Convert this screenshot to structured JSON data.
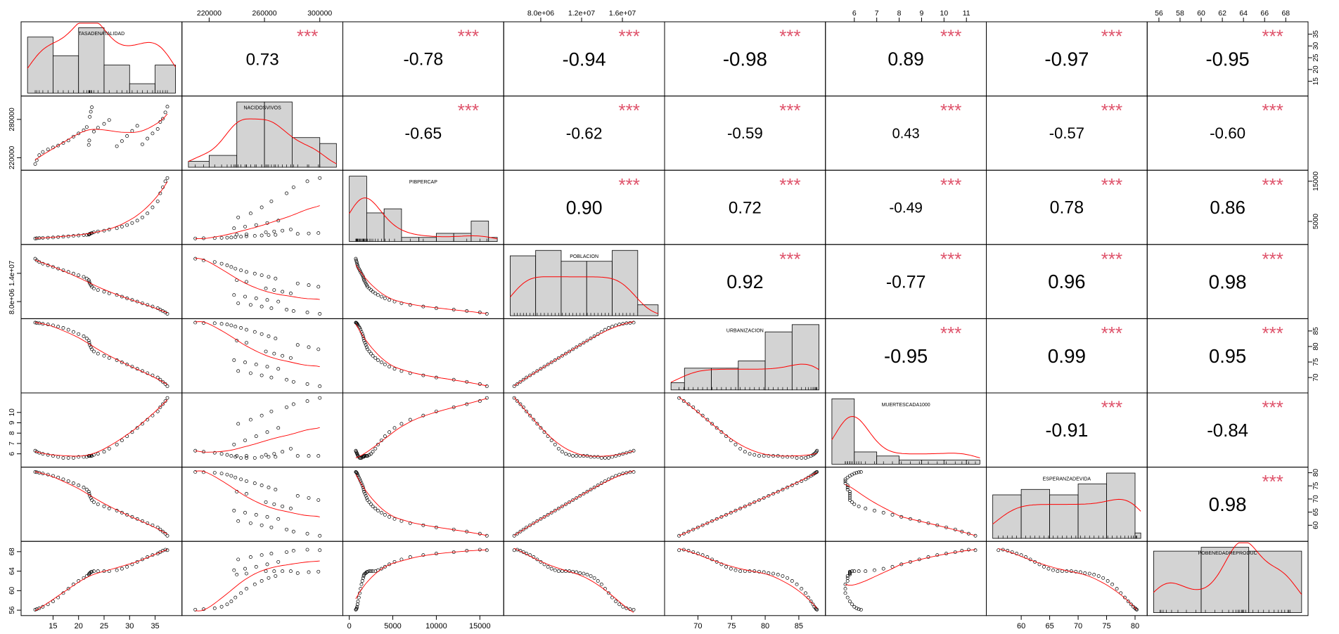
{
  "chart_data": {
    "type": "scatter",
    "variables": [
      "TASADENATALIDAD",
      "NACIDOSVIVOS",
      "PIBPERCAP",
      "POBLACION",
      "URBANIZACION",
      "MUERTESCADA1000",
      "ESPERANZADEVIDA",
      "POBENEDADREPRODUC"
    ],
    "significance_mark": "***",
    "correlations": [
      [
        null,
        0.73,
        -0.78,
        -0.94,
        -0.98,
        0.89,
        -0.97,
        -0.95
      ],
      [
        0.73,
        null,
        -0.65,
        -0.62,
        -0.59,
        0.43,
        -0.57,
        -0.6
      ],
      [
        -0.78,
        -0.65,
        null,
        0.9,
        0.72,
        -0.49,
        0.78,
        0.86
      ],
      [
        -0.94,
        -0.62,
        0.9,
        null,
        0.92,
        -0.77,
        0.96,
        0.98
      ],
      [
        -0.98,
        -0.59,
        0.72,
        0.92,
        null,
        -0.95,
        0.99,
        0.95
      ],
      [
        0.89,
        0.43,
        -0.49,
        -0.77,
        -0.95,
        null,
        -0.91,
        -0.84
      ],
      [
        -0.97,
        -0.57,
        0.78,
        0.96,
        0.99,
        -0.91,
        null,
        0.98
      ],
      [
        -0.95,
        -0.6,
        0.86,
        0.98,
        0.95,
        -0.84,
        0.98,
        null
      ]
    ],
    "correlation_labels": [
      [
        null,
        "0.73",
        "-0.78",
        "-0.94",
        "-0.98",
        "0.89",
        "-0.97",
        "-0.95"
      ],
      [
        null,
        null,
        "-0.65",
        "-0.62",
        "-0.59",
        "0.43",
        "-0.57",
        "-0.60"
      ],
      [
        null,
        null,
        null,
        "0.90",
        "0.72",
        "-0.49",
        "0.78",
        "0.86"
      ],
      [
        null,
        null,
        null,
        null,
        "0.92",
        "-0.77",
        "0.96",
        "0.98"
      ],
      [
        null,
        null,
        null,
        null,
        null,
        "-0.95",
        "0.99",
        "0.95"
      ],
      [
        null,
        null,
        null,
        null,
        null,
        null,
        "-0.91",
        "-0.84"
      ],
      [
        null,
        null,
        null,
        null,
        null,
        null,
        null,
        "0.98"
      ],
      [
        null,
        null,
        null,
        null,
        null,
        null,
        null,
        null
      ]
    ],
    "ranges": [
      [
        10,
        39
      ],
      [
        205000,
        312000
      ],
      [
        0,
        17000
      ],
      [
        5000000,
        19500000
      ],
      [
        66,
        88
      ],
      [
        5,
        11.6
      ],
      [
        55,
        81
      ],
      [
        55.5,
        69.5
      ]
    ],
    "axis_ticks": {
      "top": [
        {
          "col": 1,
          "values": [
            220000,
            260000,
            300000
          ],
          "labels": [
            "220000",
            "260000",
            "300000"
          ]
        },
        {
          "col": 3,
          "values": [
            8000000,
            12000000,
            16000000
          ],
          "labels": [
            "8.0e+06",
            "1.2e+07",
            "1.6e+07"
          ]
        },
        {
          "col": 5,
          "values": [
            6,
            7,
            8,
            9,
            10,
            11
          ],
          "labels": [
            "6",
            "7",
            "8",
            "9",
            "10",
            "11"
          ]
        },
        {
          "col": 7,
          "values": [
            56,
            58,
            60,
            62,
            64,
            66,
            68
          ],
          "labels": [
            "56",
            "58",
            "60",
            "62",
            "64",
            "66",
            "68"
          ]
        }
      ],
      "bottom": [
        {
          "col": 0,
          "values": [
            15,
            20,
            25,
            30,
            35
          ],
          "labels": [
            "15",
            "20",
            "25",
            "30",
            "35"
          ]
        },
        {
          "col": 2,
          "values": [
            0,
            5000,
            10000,
            15000
          ],
          "labels": [
            "0",
            "5000",
            "10000",
            "15000"
          ]
        },
        {
          "col": 4,
          "values": [
            70,
            75,
            80,
            85
          ],
          "labels": [
            "70",
            "75",
            "80",
            "85"
          ]
        },
        {
          "col": 6,
          "values": [
            60,
            65,
            70,
            75,
            80
          ],
          "labels": [
            "60",
            "65",
            "70",
            "75",
            "80"
          ]
        }
      ],
      "left": [
        {
          "row": 1,
          "values": [
            220000,
            280000
          ],
          "labels": [
            "220000",
            "280000"
          ]
        },
        {
          "row": 3,
          "values": [
            8000000,
            14000000
          ],
          "labels": [
            "8.0e+06",
            "1.4e+07"
          ]
        },
        {
          "row": 5,
          "values": [
            6,
            7,
            8,
            9,
            10
          ],
          "labels": [
            "6",
            "7",
            "8",
            "9",
            "10"
          ]
        },
        {
          "row": 7,
          "values": [
            56,
            60,
            64,
            68
          ],
          "labels": [
            "56",
            "60",
            "64",
            "68"
          ]
        }
      ],
      "right": [
        {
          "row": 0,
          "values": [
            15,
            20,
            25,
            30,
            35
          ],
          "labels": [
            "15",
            "20",
            "25",
            "30",
            "35"
          ]
        },
        {
          "row": 2,
          "values": [
            5000,
            15000
          ],
          "labels": [
            "5000",
            "15000"
          ]
        },
        {
          "row": 4,
          "values": [
            70,
            75,
            80,
            85
          ],
          "labels": [
            "70",
            "75",
            "80",
            "85"
          ]
        },
        {
          "row": 6,
          "values": [
            60,
            65,
            70,
            75,
            80
          ],
          "labels": [
            "60",
            "65",
            "70",
            "75",
            "80"
          ]
        }
      ]
    },
    "histograms": [
      {
        "bins": [
          10,
          15,
          20,
          25,
          30,
          35,
          39
        ],
        "counts": [
          6,
          4,
          7,
          3,
          1,
          3
        ]
      },
      {
        "bins": [
          205000,
          220000,
          240000,
          260000,
          280000,
          300000,
          312000
        ],
        "counts": [
          1,
          2,
          11,
          11,
          5,
          4
        ]
      },
      {
        "bins": [
          0,
          2000,
          4000,
          6000,
          8000,
          10000,
          12000,
          14000,
          16000,
          17000
        ],
        "counts": [
          16,
          7,
          8,
          1,
          1,
          2,
          2,
          5,
          1
        ]
      },
      {
        "bins": [
          5000000,
          7500000,
          10000000,
          12500000,
          15000000,
          17500000,
          19500000
        ],
        "counts": [
          11,
          12,
          10,
          10,
          12,
          2
        ]
      },
      {
        "bins": [
          66,
          68,
          72,
          76,
          80,
          84,
          88
        ],
        "counts": [
          1,
          3,
          3,
          4,
          8,
          9
        ]
      },
      {
        "bins": [
          5,
          6,
          7,
          8,
          9,
          10,
          11,
          11.6
        ],
        "counts": [
          16,
          3,
          2,
          1,
          1,
          1,
          1
        ]
      },
      {
        "bins": [
          55,
          60,
          65,
          70,
          75,
          80,
          81
        ],
        "counts": [
          8,
          9,
          8,
          10,
          12,
          1
        ]
      },
      {
        "bins": [
          55.5,
          60,
          64.5,
          69.5
        ],
        "counts": [
          16,
          17,
          16
        ]
      }
    ],
    "observations": [
      {
        "TASADENATALIDAD": 37.4,
        "NACIDOSVIVOS": 300000,
        "PIBPERCAP": 15800,
        "POBLACION": 5400000,
        "URBANIZACION": 67.2,
        "MUERTESCADA1000": 11.4,
        "ESPERANZADEVIDA": 56.0,
        "POBENEDADREPRODUC": 68.3
      },
      {
        "TASADENATALIDAD": 37.0,
        "NACIDOSVIVOS": 291000,
        "PIBPERCAP": 15000,
        "POBLACION": 5700000,
        "URBANIZACION": 67.9,
        "MUERTESCADA1000": 11.1,
        "ESPERANZADEVIDA": 56.8,
        "POBENEDADREPRODUC": 68.4
      },
      {
        "TASADENATALIDAD": 36.5,
        "NACIDOSVIVOS": 281000,
        "PIBPERCAP": 13500,
        "POBLACION": 6000000,
        "URBANIZACION": 68.6,
        "MUERTESCADA1000": 10.8,
        "ESPERANZADEVIDA": 57.6,
        "POBENEDADREPRODUC": 68.2
      },
      {
        "TASADENATALIDAD": 36.0,
        "NACIDOSVIVOS": 276000,
        "PIBPERCAP": 12000,
        "POBLACION": 6300000,
        "URBANIZACION": 69.3,
        "MUERTESCADA1000": 10.5,
        "ESPERANZADEVIDA": 58.4,
        "POBENEDADREPRODUC": 67.9
      },
      {
        "TASADENATALIDAD": 35.5,
        "NACIDOSVIVOS": 265000,
        "PIBPERCAP": 10000,
        "POBLACION": 6600000,
        "URBANIZACION": 70.0,
        "MUERTESCADA1000": 10.1,
        "ESPERANZADEVIDA": 59.2,
        "POBENEDADREPRODUC": 67.6
      },
      {
        "TASADENATALIDAD": 34.5,
        "NACIDOSVIVOS": 258000,
        "PIBPERCAP": 8500,
        "POBLACION": 6950000,
        "URBANIZACION": 70.7,
        "MUERTESCADA1000": 9.7,
        "ESPERANZADEVIDA": 60.0,
        "POBENEDADREPRODUC": 67.3
      },
      {
        "TASADENATALIDAD": 33.5,
        "NACIDOSVIVOS": 250000,
        "PIBPERCAP": 7000,
        "POBLACION": 7300000,
        "URBANIZACION": 71.4,
        "MUERTESCADA1000": 9.3,
        "ESPERANZADEVIDA": 60.8,
        "POBENEDADREPRODUC": 66.9
      },
      {
        "TASADENATALIDAD": 32.5,
        "NACIDOSVIVOS": 241000,
        "PIBPERCAP": 6000,
        "POBLACION": 7650000,
        "URBANIZACION": 72.1,
        "MUERTESCADA1000": 8.9,
        "ESPERANZADEVIDA": 61.6,
        "POBENEDADREPRODUC": 66.4
      },
      {
        "TASADENATALIDAD": 31.5,
        "NACIDOSVIVOS": 270000,
        "PIBPERCAP": 5200,
        "POBLACION": 8000000,
        "URBANIZACION": 72.8,
        "MUERTESCADA1000": 8.5,
        "ESPERANZADEVIDA": 62.4,
        "POBENEDADREPRODUC": 65.9
      },
      {
        "TASADENATALIDAD": 30.5,
        "NACIDOSVIVOS": 262000,
        "PIBPERCAP": 4600,
        "POBLACION": 8350000,
        "URBANIZACION": 73.5,
        "MUERTESCADA1000": 8.1,
        "ESPERANZADEVIDA": 63.2,
        "POBENEDADREPRODUC": 65.4
      },
      {
        "TASADENATALIDAD": 29.5,
        "NACIDOSVIVOS": 254000,
        "PIBPERCAP": 4100,
        "POBLACION": 8700000,
        "URBANIZACION": 74.2,
        "MUERTESCADA1000": 7.7,
        "ESPERANZADEVIDA": 64.0,
        "POBENEDADREPRODUC": 64.9
      },
      {
        "TASADENATALIDAD": 28.5,
        "NACIDOSVIVOS": 246000,
        "PIBPERCAP": 3700,
        "POBLACION": 9050000,
        "URBANIZACION": 74.9,
        "MUERTESCADA1000": 7.3,
        "ESPERANZADEVIDA": 64.8,
        "POBENEDADREPRODUC": 64.5
      },
      {
        "TASADENATALIDAD": 27.5,
        "NACIDOSVIVOS": 238000,
        "PIBPERCAP": 3300,
        "POBLACION": 9400000,
        "URBANIZACION": 75.6,
        "MUERTESCADA1000": 6.9,
        "ESPERANZADEVIDA": 65.6,
        "POBENEDADREPRODUC": 64.2
      },
      {
        "TASADENATALIDAD": 26.0,
        "NACIDOSVIVOS": 279000,
        "PIBPERCAP": 3000,
        "POBLACION": 9750000,
        "URBANIZACION": 76.3,
        "MUERTESCADA1000": 6.5,
        "ESPERANZADEVIDA": 66.4,
        "POBENEDADREPRODUC": 64.0
      },
      {
        "TASADENATALIDAD": 25.0,
        "NACIDOSVIVOS": 273000,
        "PIBPERCAP": 2700,
        "POBLACION": 10100000,
        "URBANIZACION": 77.0,
        "MUERTESCADA1000": 6.2,
        "ESPERANZADEVIDA": 67.2,
        "POBENEDADREPRODUC": 64.0
      },
      {
        "TASADENATALIDAD": 23.8,
        "NACIDOSVIVOS": 267000,
        "PIBPERCAP": 2500,
        "POBLACION": 10450000,
        "URBANIZACION": 77.7,
        "MUERTESCADA1000": 6.0,
        "ESPERANZADEVIDA": 68.0,
        "POBENEDADREPRODUC": 64.0
      },
      {
        "TASADENATALIDAD": 23.0,
        "NACIDOSVIVOS": 261000,
        "PIBPERCAP": 2300,
        "POBLACION": 10800000,
        "URBANIZACION": 78.4,
        "MUERTESCADA1000": 5.9,
        "ESPERANZADEVIDA": 68.8,
        "POBENEDADREPRODUC": 64.0
      },
      {
        "TASADENATALIDAD": 22.6,
        "NACIDOSVIVOS": 299000,
        "PIBPERCAP": 2100,
        "POBLACION": 11150000,
        "URBANIZACION": 79.1,
        "MUERTESCADA1000": 5.8,
        "ESPERANZADEVIDA": 69.6,
        "POBENEDADREPRODUC": 63.9
      },
      {
        "TASADENATALIDAD": 22.4,
        "NACIDOSVIVOS": 292000,
        "PIBPERCAP": 2000,
        "POBLACION": 11500000,
        "URBANIZACION": 79.8,
        "MUERTESCADA1000": 5.8,
        "ESPERANZADEVIDA": 70.4,
        "POBENEDADREPRODUC": 63.8
      },
      {
        "TASADENATALIDAD": 22.2,
        "NACIDOSVIVOS": 284000,
        "PIBPERCAP": 1900,
        "POBLACION": 11850000,
        "URBANIZACION": 80.5,
        "MUERTESCADA1000": 5.8,
        "ESPERANZADEVIDA": 71.2,
        "POBENEDADREPRODUC": 63.6
      },
      {
        "TASADENATALIDAD": 22.1,
        "NACIDOSVIVOS": 247000,
        "PIBPERCAP": 1800,
        "POBLACION": 12200000,
        "URBANIZACION": 81.2,
        "MUERTESCADA1000": 5.8,
        "ESPERANZADEVIDA": 72.0,
        "POBENEDADREPRODUC": 63.5
      },
      {
        "TASADENATALIDAD": 22.0,
        "NACIDOSVIVOS": 240000,
        "PIBPERCAP": 1700,
        "POBLACION": 12550000,
        "URBANIZACION": 81.9,
        "MUERTESCADA1000": 5.8,
        "ESPERANZADEVIDA": 72.8,
        "POBENEDADREPRODUC": 63.3
      },
      {
        "TASADENATALIDAD": 21.6,
        "NACIDOSVIVOS": 268000,
        "PIBPERCAP": 1650,
        "POBLACION": 12900000,
        "URBANIZACION": 82.6,
        "MUERTESCADA1000": 5.7,
        "ESPERANZADEVIDA": 73.6,
        "POBENEDADREPRODUC": 63.0
      },
      {
        "TASADENATALIDAD": 21.0,
        "NACIDOSVIVOS": 263000,
        "PIBPERCAP": 1600,
        "POBLACION": 13250000,
        "URBANIZACION": 83.3,
        "MUERTESCADA1000": 5.7,
        "ESPERANZADEVIDA": 74.4,
        "POBENEDADREPRODUC": 62.6
      },
      {
        "TASADENATALIDAD": 20.0,
        "NACIDOSVIVOS": 258000,
        "PIBPERCAP": 1500,
        "POBLACION": 13600000,
        "URBANIZACION": 84.0,
        "MUERTESCADA1000": 5.7,
        "ESPERANZADEVIDA": 75.2,
        "POBENEDADREPRODUC": 62.0
      },
      {
        "TASADENATALIDAD": 19.0,
        "NACIDOSVIVOS": 253000,
        "PIBPERCAP": 1400,
        "POBLACION": 13950000,
        "URBANIZACION": 84.7,
        "MUERTESCADA1000": 5.6,
        "ESPERANZADEVIDA": 76.0,
        "POBENEDADREPRODUC": 61.3
      },
      {
        "TASADENATALIDAD": 18.0,
        "NACIDOSVIVOS": 247000,
        "PIBPERCAP": 1300,
        "POBLACION": 14300000,
        "URBANIZACION": 85.4,
        "MUERTESCADA1000": 5.6,
        "ESPERANZADEVIDA": 76.8,
        "POBENEDADREPRODUC": 60.4
      },
      {
        "TASADENATALIDAD": 17.0,
        "NACIDOSVIVOS": 243000,
        "PIBPERCAP": 1200,
        "POBLACION": 14650000,
        "URBANIZACION": 86.0,
        "MUERTESCADA1000": 5.6,
        "ESPERANZADEVIDA": 77.5,
        "POBENEDADREPRODUC": 59.5
      },
      {
        "TASADENATALIDAD": 16.0,
        "NACIDOSVIVOS": 239000,
        "PIBPERCAP": 1100,
        "POBLACION": 15000000,
        "URBANIZACION": 86.4,
        "MUERTESCADA1000": 5.7,
        "ESPERANZADEVIDA": 78.2,
        "POBENEDADREPRODUC": 58.6
      },
      {
        "TASADENATALIDAD": 15.0,
        "NACIDOSVIVOS": 236000,
        "PIBPERCAP": 1000,
        "POBLACION": 15350000,
        "URBANIZACION": 86.8,
        "MUERTESCADA1000": 5.8,
        "ESPERANZADEVIDA": 78.8,
        "POBENEDADREPRODUC": 57.8
      },
      {
        "TASADENATALIDAD": 14.0,
        "NACIDOSVIVOS": 233000,
        "PIBPERCAP": 950,
        "POBLACION": 15700000,
        "URBANIZACION": 87.1,
        "MUERTESCADA1000": 5.9,
        "ESPERANZADEVIDA": 79.3,
        "POBENEDADREPRODUC": 57.2
      },
      {
        "TASADENATALIDAD": 13.0,
        "NACIDOSVIVOS": 229000,
        "PIBPERCAP": 900,
        "POBLACION": 16050000,
        "URBANIZACION": 87.3,
        "MUERTESCADA1000": 6.0,
        "ESPERANZADEVIDA": 79.7,
        "POBENEDADREPRODUC": 56.7
      },
      {
        "TASADENATALIDAD": 12.3,
        "NACIDOSVIVOS": 224000,
        "PIBPERCAP": 850,
        "POBLACION": 16400000,
        "URBANIZACION": 87.5,
        "MUERTESCADA1000": 6.1,
        "ESPERANZADEVIDA": 80.0,
        "POBENEDADREPRODUC": 56.4
      },
      {
        "TASADENATALIDAD": 11.8,
        "NACIDOSVIVOS": 216000,
        "PIBPERCAP": 800,
        "POBLACION": 16750000,
        "URBANIZACION": 87.6,
        "MUERTESCADA1000": 6.2,
        "ESPERANZADEVIDA": 80.2,
        "POBENEDADREPRODUC": 56.2
      },
      {
        "TASADENATALIDAD": 11.5,
        "NACIDOSVIVOS": 210000,
        "PIBPERCAP": 750,
        "POBLACION": 17100000,
        "URBANIZACION": 87.7,
        "MUERTESCADA1000": 6.3,
        "ESPERANZADEVIDA": 80.3,
        "POBENEDADREPRODUC": 56.1
      }
    ]
  }
}
